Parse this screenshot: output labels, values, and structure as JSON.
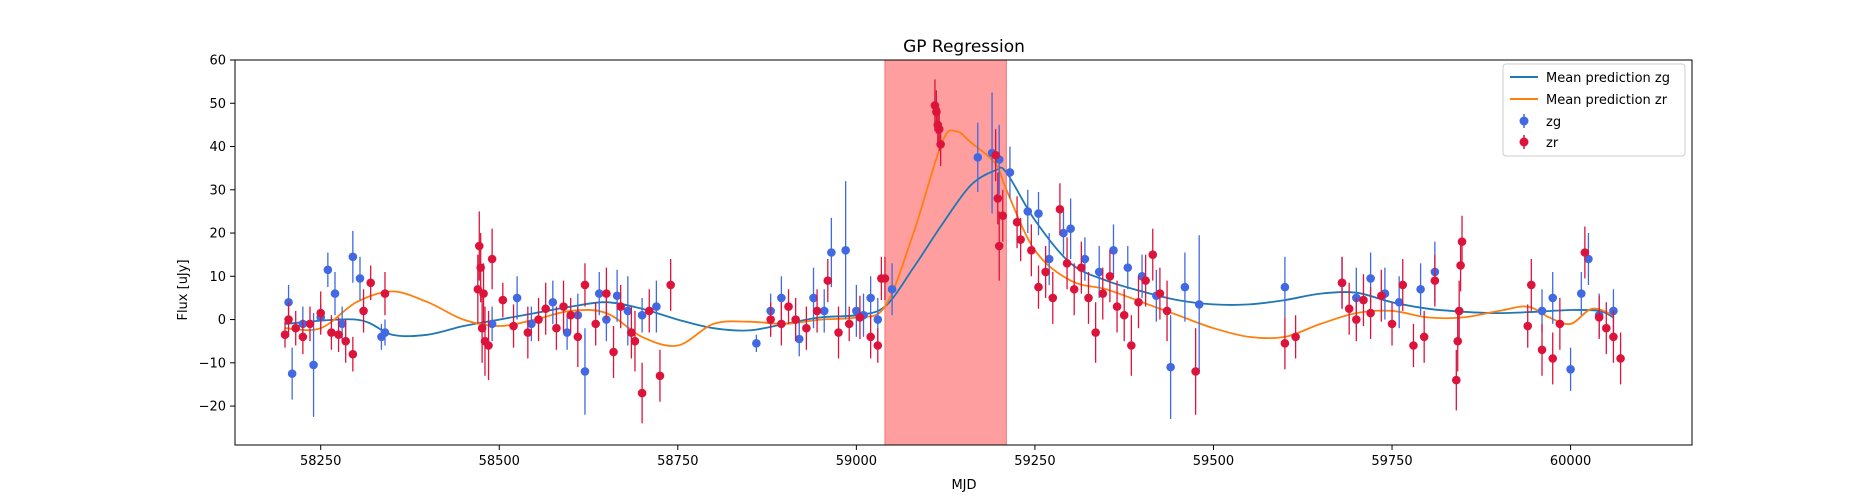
{
  "chart_data": {
    "type": "scatter",
    "title": "GP Regression",
    "xlabel": "MJD",
    "ylabel": "Flux [uJy]",
    "xlim": [
      58130,
      60170
    ],
    "ylim": [
      -29,
      60
    ],
    "xticks": [
      58250,
      58500,
      58750,
      59000,
      59250,
      59500,
      59750,
      60000
    ],
    "yticks": [
      -20,
      -10,
      0,
      10,
      20,
      30,
      40,
      50,
      60
    ],
    "legend_position": "top-right",
    "highlight_span": {
      "x0": 59040,
      "x1": 59210,
      "color": "#ff9e9e"
    },
    "series": [
      {
        "name": "Mean prediction zg",
        "kind": "line",
        "color": "#1f77b4",
        "x": [
          58200,
          58300,
          58350,
          58400,
          58450,
          58500,
          58550,
          58600,
          58650,
          58700,
          58750,
          58800,
          58850,
          58900,
          58950,
          59000,
          59040,
          59080,
          59120,
          59160,
          59195,
          59210,
          59250,
          59300,
          59350,
          59400,
          59450,
          59500,
          59550,
          59600,
          59650,
          59700,
          59750,
          59800,
          59850,
          59900,
          59950,
          60000,
          60040,
          60060
        ],
        "y": [
          -1,
          0,
          -3.5,
          -3.5,
          -1.5,
          0,
          1.5,
          3,
          4,
          2.5,
          0,
          -2,
          -2.5,
          -1,
          0.5,
          1,
          3,
          12,
          22,
          31,
          34.5,
          34,
          23,
          13,
          9,
          6.5,
          4.5,
          3.5,
          3.5,
          4.5,
          6,
          6.2,
          4,
          2.5,
          1.8,
          1.5,
          1.8,
          2.2,
          2,
          0.5
        ]
      },
      {
        "name": "Mean prediction zr",
        "kind": "line",
        "color": "#ff7f0e",
        "x": [
          58200,
          58250,
          58300,
          58350,
          58400,
          58450,
          58500,
          58550,
          58600,
          58650,
          58700,
          58750,
          58800,
          58850,
          58900,
          58950,
          59000,
          59040,
          59080,
          59120,
          59140,
          59160,
          59195,
          59210,
          59250,
          59300,
          59350,
          59400,
          59450,
          59500,
          59550,
          59600,
          59650,
          59700,
          59750,
          59800,
          59850,
          59900,
          59940,
          59970,
          60000,
          60030,
          60060
        ],
        "y": [
          -2,
          -2,
          4,
          6.5,
          4,
          0,
          -1.5,
          0,
          2,
          1.5,
          -4,
          -6,
          -1,
          -0.5,
          -1,
          0,
          0.5,
          3,
          20,
          41,
          43.5,
          41,
          36,
          30,
          16,
          9,
          7,
          4,
          1,
          -2,
          -4,
          -4,
          -1,
          1.5,
          2,
          0.5,
          0.5,
          2,
          3,
          0.5,
          -1,
          2.5,
          1
        ]
      },
      {
        "name": "zg",
        "kind": "errorbar",
        "color": "#4169e1",
        "x": [
          58205,
          58210,
          58225,
          58240,
          58250,
          58260,
          58270,
          58280,
          58295,
          58305,
          58335,
          58340,
          58490,
          58525,
          58545,
          58575,
          58595,
          58610,
          58620,
          58640,
          58650,
          58665,
          58680,
          58700,
          58720,
          58860,
          58880,
          58895,
          58920,
          58940,
          58955,
          58965,
          58985,
          59000,
          59010,
          59020,
          59030,
          59050,
          59170,
          59190,
          59200,
          59215,
          59240,
          59255,
          59270,
          59290,
          59300,
          59320,
          59340,
          59360,
          59380,
          59400,
          59420,
          59440,
          59460,
          59480,
          59600,
          59680,
          59700,
          59720,
          59740,
          59760,
          59790,
          59810,
          59960,
          59975,
          60000,
          60015,
          60025,
          60040,
          60060
        ],
        "y": [
          4,
          -12.5,
          -1,
          -10.5,
          0.5,
          11.5,
          6,
          -1,
          14.5,
          9.5,
          -4,
          -3,
          -1,
          5,
          -1,
          4,
          -3,
          1,
          -12,
          6,
          0,
          5.5,
          2,
          1,
          3,
          -5.5,
          2,
          5,
          -4.5,
          5,
          2,
          15.5,
          16,
          2,
          1,
          5,
          0,
          7,
          37.5,
          38.5,
          37,
          34,
          25,
          24.5,
          14,
          20,
          21,
          14,
          11,
          16,
          12,
          10,
          5.5,
          -11,
          7.5,
          3.5,
          7.5,
          8.5,
          5,
          9.5,
          6,
          4,
          7,
          11,
          2,
          5,
          -11.5,
          6,
          14,
          1,
          2
        ],
        "err": [
          4,
          6,
          4,
          12,
          3,
          4,
          5,
          4,
          6,
          5,
          3,
          3,
          4,
          5,
          4,
          5,
          4,
          5,
          10,
          5,
          5,
          6,
          8,
          4,
          6,
          2,
          4,
          5,
          4,
          7,
          5,
          8,
          16,
          6,
          5,
          5,
          5,
          6,
          8,
          14,
          8,
          6,
          5,
          5,
          6,
          5,
          7,
          5,
          6,
          6,
          5,
          5,
          6,
          12,
          8,
          16,
          7,
          6,
          7,
          6,
          6,
          6,
          6,
          7,
          5,
          6,
          5,
          5,
          6,
          5,
          5
        ]
      },
      {
        "name": "zr",
        "kind": "errorbar",
        "color": "#dc143c",
        "x": [
          58200,
          58205,
          58215,
          58225,
          58235,
          58250,
          58265,
          58275,
          58285,
          58295,
          58310,
          58320,
          58340,
          58470,
          58472,
          58474,
          58476,
          58478,
          58480,
          58485,
          58490,
          58505,
          58520,
          58540,
          58555,
          58565,
          58580,
          58590,
          58600,
          58610,
          58620,
          58635,
          58650,
          58660,
          58670,
          58685,
          58690,
          58700,
          58710,
          58725,
          58740,
          58880,
          58895,
          58905,
          58915,
          58930,
          58945,
          58960,
          58975,
          58990,
          59005,
          59020,
          59030,
          59035,
          59040,
          59110,
          59112,
          59114,
          59116,
          59118,
          59195,
          59198,
          59200,
          59205,
          59225,
          59230,
          59245,
          59255,
          59265,
          59275,
          59285,
          59295,
          59305,
          59315,
          59325,
          59335,
          59345,
          59355,
          59365,
          59375,
          59385,
          59395,
          59405,
          59415,
          59425,
          59435,
          59475,
          59600,
          59615,
          59680,
          59690,
          59700,
          59710,
          59720,
          59735,
          59750,
          59765,
          59780,
          59795,
          59810,
          59840,
          59842,
          59844,
          59846,
          59848,
          59940,
          59945,
          59960,
          59975,
          59985,
          60020,
          60040,
          60050,
          60060,
          60070
        ],
        "y": [
          -3.5,
          0,
          -2,
          -4,
          -1,
          1.5,
          -3,
          -3.5,
          -5,
          -8,
          2,
          8.5,
          6,
          7,
          17,
          12,
          -2,
          6,
          -5,
          -6,
          14,
          4.5,
          -1.5,
          -3,
          0,
          2.5,
          -2,
          3,
          1,
          -4,
          8,
          -1,
          6,
          -7.5,
          3,
          -3,
          -5,
          -17,
          2,
          -13,
          8,
          0,
          -1,
          3,
          0,
          -2,
          2,
          9,
          -3,
          -1,
          0.5,
          -4,
          -6,
          9.5,
          9.5,
          49.5,
          48,
          45,
          44,
          40.5,
          38,
          28,
          17,
          24,
          22.5,
          18.5,
          16,
          7.5,
          11,
          5,
          25.5,
          13,
          7,
          12,
          5,
          -3,
          6,
          10,
          3,
          1,
          -6,
          4,
          9,
          15,
          6,
          2,
          -12,
          -5.5,
          -4,
          8.5,
          2.5,
          0,
          4.5,
          1.5,
          5.5,
          -1,
          8,
          -6,
          -4,
          9,
          -14,
          -5,
          2,
          12.5,
          18,
          -1.5,
          8,
          -7,
          -9,
          -1,
          15.5,
          0.5,
          -2,
          -4,
          -9
        ],
        "err": [
          3,
          4,
          4,
          4,
          4,
          5,
          4,
          4,
          5,
          4,
          5,
          4,
          5,
          8,
          8,
          8,
          8,
          7,
          8,
          8,
          7,
          4,
          5,
          6,
          5,
          6,
          5,
          6,
          4,
          7,
          5,
          5,
          6,
          6,
          5,
          6,
          7,
          7,
          5,
          6,
          6,
          4,
          5,
          4,
          5,
          5,
          5,
          5,
          6,
          4,
          5,
          5,
          4,
          5,
          5,
          6,
          5,
          5,
          5,
          5,
          6,
          6,
          8,
          6,
          6,
          5,
          6,
          5,
          6,
          6,
          6,
          6,
          6,
          6,
          6,
          7,
          6,
          6,
          6,
          6,
          7,
          6,
          6,
          6,
          6,
          7,
          10,
          6,
          5,
          6,
          6,
          5,
          6,
          6,
          6,
          5,
          6,
          5,
          6,
          6,
          7,
          7,
          7,
          6,
          6,
          5,
          6,
          6,
          6,
          6,
          6,
          5,
          6,
          6,
          6
        ]
      }
    ]
  }
}
